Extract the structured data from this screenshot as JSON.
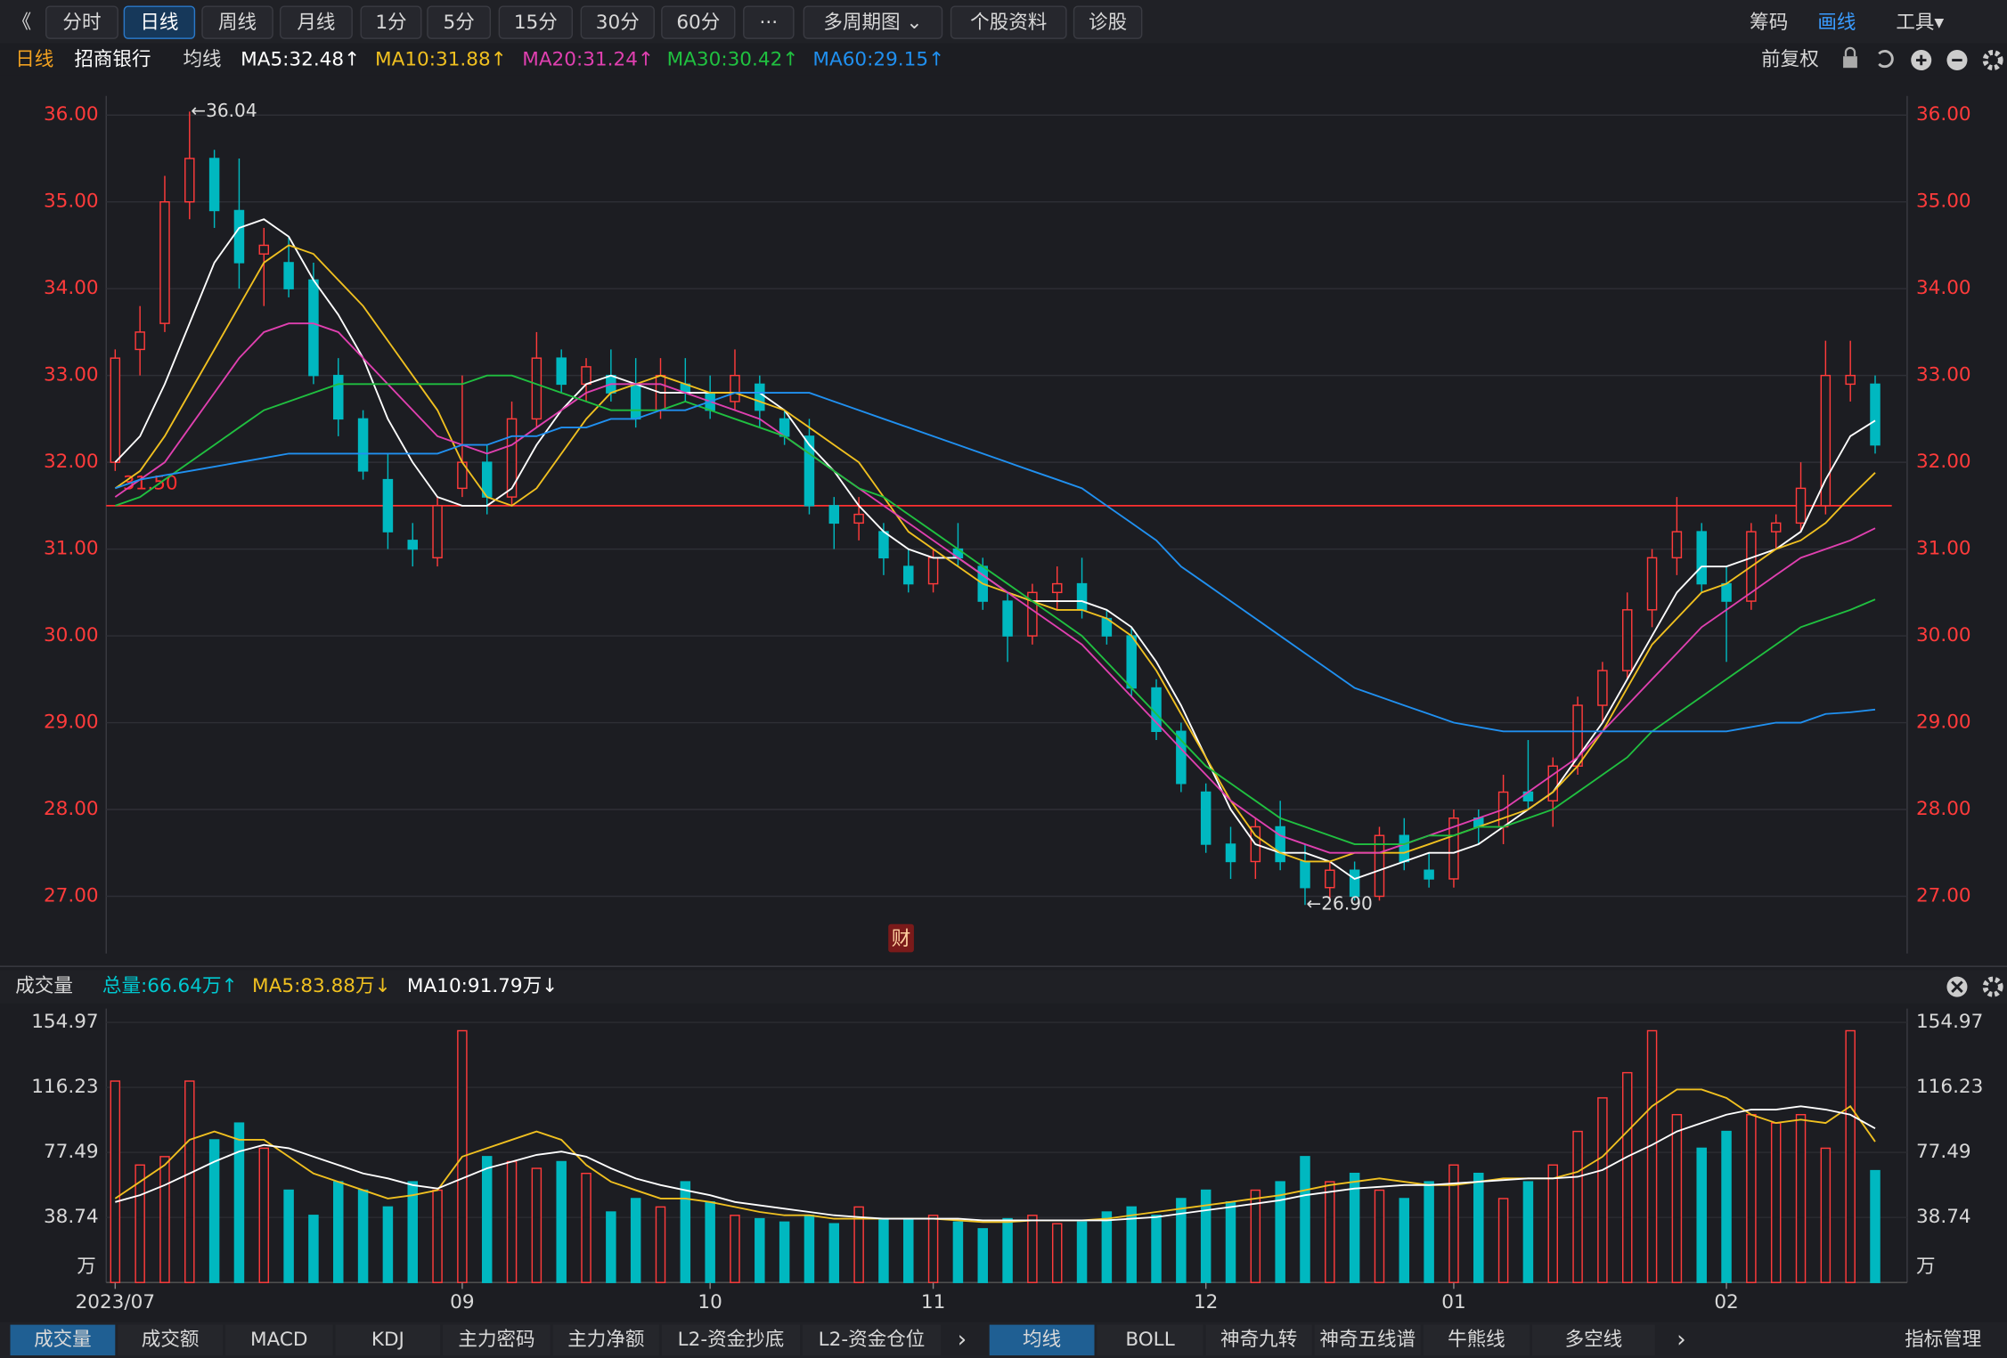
{
  "toolbar": {
    "back": "《",
    "buttons": [
      "分时",
      "日线",
      "周线",
      "月线",
      "1分",
      "5分",
      "15分",
      "30分",
      "60分",
      "···",
      "多周期图 ⌄",
      "个股资料",
      "诊股"
    ],
    "right": [
      "筹码",
      "画线",
      "工具▾"
    ]
  },
  "info_bar": {
    "period": "日线",
    "stock": "招商银行",
    "adjust": "前复权"
  },
  "chart_data": [
    {
      "type": "candlestick",
      "legend_title": "均线",
      "event_marker": "财",
      "up_color": "#ff3b3b",
      "down_color": "#00b8c0",
      "ylim": [
        26.34,
        36.22
      ],
      "yticks": [
        {
          "value": 27,
          "label": "27.00"
        },
        {
          "value": 28,
          "label": "28.00"
        },
        {
          "value": 29,
          "label": "29.00"
        },
        {
          "value": 30,
          "label": "30.00"
        },
        {
          "value": 31,
          "label": "31.00"
        },
        {
          "value": 32,
          "label": "32.00"
        },
        {
          "value": 33,
          "label": "33.00"
        },
        {
          "value": 34,
          "label": "34.00"
        },
        {
          "value": 35,
          "label": "35.00"
        },
        {
          "value": 36,
          "label": "36.00"
        }
      ],
      "grid": true,
      "open": [
        32.0,
        33.3,
        33.6,
        35.0,
        35.5,
        34.9,
        34.4,
        34.3,
        34.1,
        33.0,
        32.5,
        31.8,
        31.1,
        30.9,
        31.7,
        32.0,
        31.6,
        32.5,
        33.2,
        32.9,
        33.0,
        32.9,
        32.6,
        32.9,
        32.8,
        32.7,
        32.9,
        32.5,
        32.3,
        31.5,
        31.3,
        31.2,
        30.8,
        30.6,
        31.0,
        30.8,
        30.4,
        30.0,
        30.5,
        30.6,
        30.2,
        30.0,
        29.4,
        28.9,
        28.2,
        27.6,
        27.4,
        27.8,
        27.4,
        27.1,
        27.3,
        27.0,
        27.7,
        27.3,
        27.2,
        27.9,
        27.8,
        28.2,
        28.1,
        28.5,
        29.2,
        29.6,
        30.3,
        30.9,
        31.2,
        30.6,
        30.4,
        31.2,
        31.3,
        31.5,
        32.9,
        32.9
      ],
      "high": [
        33.3,
        33.8,
        35.3,
        36.04,
        35.6,
        35.5,
        34.7,
        34.6,
        34.3,
        33.2,
        32.6,
        32.1,
        31.3,
        31.6,
        33.0,
        32.2,
        32.7,
        33.5,
        33.3,
        33.2,
        33.3,
        33.2,
        33.2,
        33.2,
        33.0,
        33.3,
        33.0,
        32.6,
        32.5,
        31.6,
        31.6,
        31.3,
        31.0,
        31.0,
        31.3,
        30.9,
        30.5,
        30.6,
        30.8,
        30.9,
        30.3,
        30.1,
        29.5,
        29.0,
        28.3,
        27.8,
        27.9,
        28.1,
        27.6,
        27.4,
        27.4,
        27.8,
        27.9,
        27.5,
        28.0,
        28.0,
        28.4,
        28.8,
        28.6,
        29.3,
        29.7,
        30.5,
        31.0,
        31.6,
        31.3,
        30.8,
        31.3,
        31.4,
        32.0,
        33.4,
        33.4,
        33.0
      ],
      "low": [
        31.9,
        33.0,
        33.5,
        34.8,
        34.7,
        34.0,
        33.8,
        33.9,
        32.9,
        32.3,
        31.8,
        31.0,
        30.8,
        30.8,
        31.6,
        31.4,
        31.5,
        32.4,
        32.8,
        32.7,
        32.7,
        32.4,
        32.5,
        32.7,
        32.5,
        32.6,
        32.4,
        32.2,
        31.4,
        31.0,
        31.1,
        30.7,
        30.5,
        30.5,
        30.8,
        30.3,
        29.7,
        29.9,
        30.3,
        30.2,
        29.9,
        29.3,
        28.8,
        28.2,
        27.5,
        27.2,
        27.2,
        27.3,
        26.9,
        26.95,
        26.95,
        26.95,
        27.3,
        27.1,
        27.1,
        27.6,
        27.6,
        28.0,
        27.8,
        28.4,
        29.0,
        29.5,
        30.1,
        30.7,
        30.5,
        29.7,
        30.3,
        31.0,
        31.2,
        31.4,
        32.7,
        32.1
      ],
      "close": [
        33.2,
        33.5,
        35.0,
        35.5,
        34.9,
        34.3,
        34.5,
        34.0,
        33.0,
        32.5,
        31.9,
        31.2,
        31.0,
        31.5,
        32.0,
        31.6,
        32.5,
        33.2,
        32.9,
        33.1,
        32.8,
        32.5,
        33.0,
        32.8,
        32.6,
        33.0,
        32.6,
        32.3,
        31.5,
        31.3,
        31.4,
        30.9,
        30.6,
        30.9,
        30.9,
        30.4,
        30.0,
        30.5,
        30.6,
        30.3,
        30.0,
        29.4,
        28.9,
        28.3,
        27.6,
        27.4,
        27.8,
        27.4,
        27.1,
        27.3,
        27.0,
        27.7,
        27.4,
        27.2,
        27.9,
        27.8,
        28.2,
        28.1,
        28.5,
        29.2,
        29.6,
        30.3,
        30.9,
        31.2,
        30.6,
        30.4,
        31.2,
        31.3,
        31.7,
        33.0,
        33.0,
        32.2
      ],
      "series": [
        {
          "name": "MA5",
          "legend": "MA5:32.48↑",
          "color": "#ffffff",
          "values": [
            32.0,
            32.3,
            32.9,
            33.6,
            34.3,
            34.7,
            34.8,
            34.6,
            34.1,
            33.7,
            33.2,
            32.5,
            32.0,
            31.6,
            31.5,
            31.5,
            31.7,
            32.2,
            32.6,
            32.9,
            33.0,
            32.9,
            32.8,
            32.8,
            32.8,
            32.8,
            32.8,
            32.6,
            32.2,
            31.9,
            31.5,
            31.2,
            31.0,
            30.9,
            30.9,
            30.7,
            30.5,
            30.4,
            30.4,
            30.4,
            30.3,
            30.1,
            29.7,
            29.2,
            28.6,
            28.0,
            27.6,
            27.5,
            27.5,
            27.4,
            27.2,
            27.3,
            27.4,
            27.5,
            27.5,
            27.6,
            27.8,
            28.0,
            28.2,
            28.6,
            29.0,
            29.5,
            30.0,
            30.5,
            30.8,
            30.8,
            30.9,
            31.0,
            31.2,
            31.8,
            32.3,
            32.48
          ]
        },
        {
          "name": "MA10",
          "legend": "MA10:31.88↑",
          "color": "#f0c020",
          "values": [
            31.7,
            31.9,
            32.3,
            32.8,
            33.3,
            33.8,
            34.3,
            34.5,
            34.4,
            34.1,
            33.8,
            33.4,
            33.0,
            32.6,
            32.0,
            31.6,
            31.5,
            31.7,
            32.1,
            32.5,
            32.8,
            32.9,
            33.0,
            32.9,
            32.8,
            32.8,
            32.7,
            32.6,
            32.4,
            32.2,
            32.0,
            31.6,
            31.2,
            31.0,
            30.8,
            30.6,
            30.5,
            30.4,
            30.3,
            30.3,
            30.2,
            30.0,
            29.6,
            29.1,
            28.6,
            28.1,
            27.7,
            27.5,
            27.4,
            27.4,
            27.5,
            27.5,
            27.5,
            27.6,
            27.7,
            27.8,
            27.9,
            28.0,
            28.2,
            28.5,
            28.9,
            29.4,
            29.9,
            30.2,
            30.5,
            30.6,
            30.8,
            31.0,
            31.1,
            31.3,
            31.6,
            31.88
          ]
        },
        {
          "name": "MA20",
          "legend": "MA20:31.24↑",
          "color": "#e040b0",
          "values": [
            31.6,
            31.8,
            32.0,
            32.4,
            32.8,
            33.2,
            33.5,
            33.6,
            33.6,
            33.5,
            33.2,
            32.9,
            32.6,
            32.3,
            32.2,
            32.1,
            32.2,
            32.4,
            32.6,
            32.8,
            32.9,
            32.9,
            32.9,
            32.8,
            32.7,
            32.6,
            32.5,
            32.3,
            32.1,
            31.9,
            31.7,
            31.5,
            31.3,
            31.1,
            30.9,
            30.7,
            30.5,
            30.3,
            30.1,
            29.9,
            29.6,
            29.3,
            29.0,
            28.7,
            28.4,
            28.1,
            27.9,
            27.7,
            27.6,
            27.5,
            27.5,
            27.5,
            27.6,
            27.7,
            27.8,
            27.9,
            28.0,
            28.2,
            28.4,
            28.6,
            28.9,
            29.2,
            29.5,
            29.8,
            30.1,
            30.3,
            30.5,
            30.7,
            30.9,
            31.0,
            31.1,
            31.24
          ]
        },
        {
          "name": "MA30",
          "legend": "MA30:30.42↑",
          "color": "#20c040",
          "values": [
            31.5,
            31.6,
            31.8,
            32.0,
            32.2,
            32.4,
            32.6,
            32.7,
            32.8,
            32.9,
            32.9,
            32.9,
            32.9,
            32.9,
            32.9,
            33.0,
            33.0,
            32.9,
            32.8,
            32.7,
            32.6,
            32.6,
            32.6,
            32.7,
            32.6,
            32.5,
            32.4,
            32.3,
            32.1,
            31.9,
            31.7,
            31.6,
            31.4,
            31.2,
            31.0,
            30.8,
            30.6,
            30.4,
            30.2,
            30.0,
            29.7,
            29.4,
            29.1,
            28.8,
            28.5,
            28.3,
            28.1,
            27.9,
            27.8,
            27.7,
            27.6,
            27.6,
            27.6,
            27.7,
            27.7,
            27.8,
            27.8,
            27.9,
            28.0,
            28.2,
            28.4,
            28.6,
            28.9,
            29.1,
            29.3,
            29.5,
            29.7,
            29.9,
            30.1,
            30.2,
            30.3,
            30.42
          ]
        },
        {
          "name": "MA60",
          "legend": "MA60:29.15↑",
          "color": "#2090f0",
          "values": [
            31.7,
            31.8,
            31.85,
            31.9,
            31.95,
            32.0,
            32.05,
            32.1,
            32.1,
            32.1,
            32.1,
            32.1,
            32.1,
            32.1,
            32.2,
            32.2,
            32.3,
            32.3,
            32.4,
            32.4,
            32.5,
            32.5,
            32.6,
            32.6,
            32.7,
            32.8,
            32.8,
            32.8,
            32.8,
            32.7,
            32.6,
            32.5,
            32.4,
            32.3,
            32.2,
            32.1,
            32.0,
            31.9,
            31.8,
            31.7,
            31.5,
            31.3,
            31.1,
            30.8,
            30.6,
            30.4,
            30.2,
            30.0,
            29.8,
            29.6,
            29.4,
            29.3,
            29.2,
            29.1,
            29.0,
            28.95,
            28.9,
            28.9,
            28.9,
            28.9,
            28.9,
            28.9,
            28.9,
            28.9,
            28.9,
            28.9,
            28.95,
            29.0,
            29.0,
            29.1,
            29.12,
            29.15
          ]
        }
      ],
      "annotations": [
        {
          "text": "←36.04",
          "value": 36.04
        },
        {
          "text": "←26.90",
          "value": 26.9
        }
      ],
      "reference_line": {
        "label": "31.50",
        "value": 31.5,
        "color": "#ff3030"
      }
    },
    {
      "type": "bar",
      "title": "成交量",
      "unit": "万",
      "ylim": [
        0,
        163.2
      ],
      "yticks": [
        38.74,
        77.49,
        116.23,
        154.97
      ],
      "categories": [
        "2023/07",
        null,
        null,
        null,
        null,
        null,
        null,
        null,
        null,
        null,
        null,
        null,
        null,
        null,
        "09",
        null,
        null,
        null,
        null,
        null,
        null,
        null,
        null,
        null,
        "10",
        null,
        null,
        null,
        null,
        null,
        null,
        null,
        null,
        "11",
        null,
        null,
        null,
        null,
        null,
        null,
        null,
        null,
        null,
        null,
        "12",
        null,
        null,
        null,
        null,
        null,
        null,
        null,
        null,
        null,
        "01",
        null,
        null,
        null,
        null,
        null,
        null,
        null,
        null,
        null,
        null,
        "02",
        null,
        null,
        null,
        null,
        null,
        null
      ],
      "series": [
        {
          "name": "总量",
          "legend": "总量:66.64万↑",
          "color": "#00c8d0",
          "values": [
            120,
            70,
            75,
            120,
            85,
            95,
            80,
            55,
            40,
            60,
            55,
            45,
            60,
            55,
            150,
            75,
            72,
            68,
            72,
            65,
            42,
            50,
            45,
            60,
            48,
            40,
            38,
            36,
            40,
            35,
            45,
            38,
            38,
            40,
            36,
            32,
            38,
            40,
            35,
            36,
            42,
            45,
            40,
            50,
            55,
            48,
            55,
            60,
            75,
            60,
            65,
            55,
            50,
            60,
            70,
            65,
            50,
            60,
            70,
            90,
            110,
            125,
            150,
            100,
            80,
            90,
            100,
            95,
            100,
            80,
            150,
            66.64
          ]
        },
        {
          "name": "MA5",
          "legend": "MA5:83.88万↓",
          "color": "#f0c020",
          "values": [
            50,
            60,
            70,
            85,
            90,
            85,
            85,
            75,
            65,
            60,
            55,
            50,
            52,
            55,
            75,
            80,
            85,
            90,
            85,
            70,
            60,
            55,
            50,
            50,
            48,
            45,
            42,
            40,
            40,
            38,
            38,
            38,
            38,
            38,
            37,
            36,
            36,
            37,
            37,
            37,
            38,
            40,
            42,
            44,
            46,
            48,
            50,
            52,
            55,
            58,
            60,
            62,
            60,
            58,
            58,
            60,
            62,
            62,
            62,
            66,
            75,
            90,
            105,
            115,
            115,
            110,
            100,
            95,
            97,
            95,
            105,
            83.88
          ]
        },
        {
          "name": "MA10",
          "legend": "MA10:91.79万↓",
          "color": "#ffffff",
          "values": [
            48,
            52,
            58,
            65,
            72,
            78,
            82,
            80,
            75,
            70,
            65,
            62,
            58,
            56,
            62,
            68,
            72,
            76,
            78,
            75,
            68,
            62,
            58,
            55,
            52,
            48,
            46,
            44,
            42,
            40,
            39,
            38,
            38,
            38,
            38,
            37,
            37,
            37,
            37,
            37,
            37,
            38,
            39,
            41,
            43,
            45,
            47,
            49,
            52,
            54,
            56,
            57,
            58,
            58,
            59,
            60,
            61,
            62,
            62,
            63,
            67,
            75,
            82,
            90,
            95,
            100,
            103,
            103,
            105,
            103,
            100,
            91.79
          ]
        }
      ]
    }
  ],
  "tabs": {
    "left": [
      "成交量",
      "成交额",
      "MACD",
      "KDJ",
      "主力密码",
      "主力净额",
      "L2-资金抄底",
      "L2-资金仓位"
    ],
    "right": [
      "均线",
      "BOLL",
      "神奇九转",
      "神奇五线谱",
      "牛熊线",
      "多空线"
    ],
    "manage": "指标管理"
  }
}
